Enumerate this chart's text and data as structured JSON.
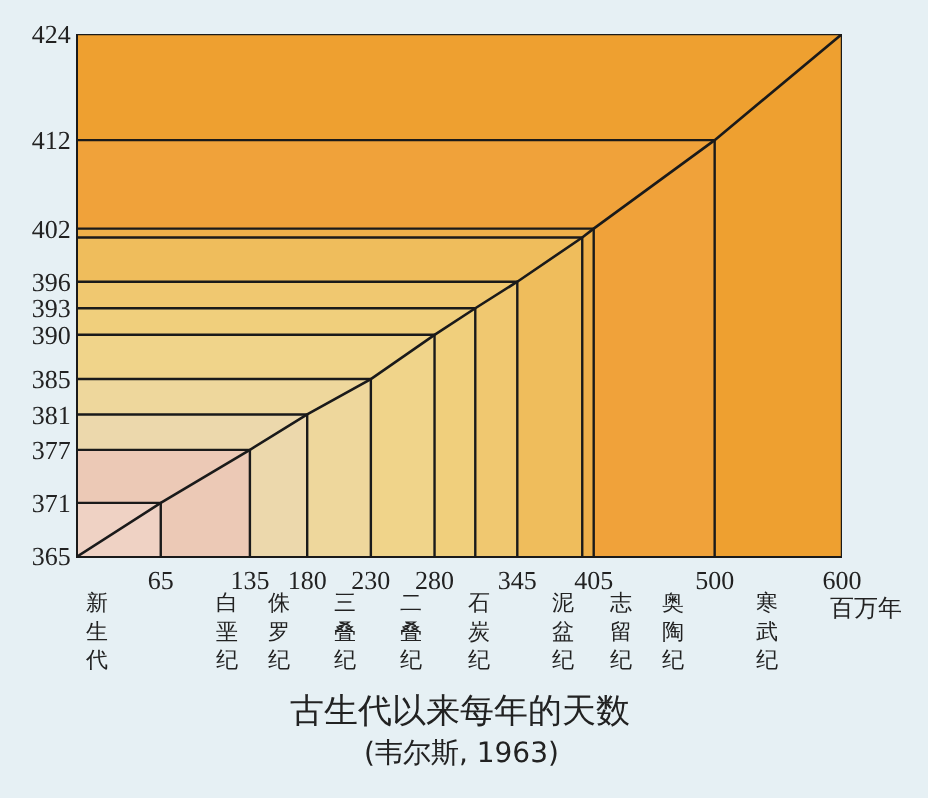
{
  "chart_data": {
    "type": "line",
    "title": "古生代以来每年的天数",
    "subtitle": "(韦尔斯, 1963)",
    "xlabel": "百万年",
    "series": [
      {
        "type": "area",
        "color": "#eea030",
        "x": [
          0,
          600,
          600
        ],
        "values": [
          424,
          424,
          365
        ]
      },
      {
        "type": "area",
        "color": "#f0a23a",
        "x": [
          0,
          500,
          500
        ],
        "values": [
          412,
          412,
          365
        ]
      },
      {
        "type": "area",
        "color": "#eeb04a",
        "x": [
          0,
          405,
          405
        ],
        "values": [
          402,
          402,
          365
        ]
      },
      {
        "type": "area",
        "color": "#efbd5c",
        "x": [
          0,
          396,
          396
        ],
        "values": [
          401,
          401,
          365
        ]
      },
      {
        "type": "area",
        "color": "#f0c870",
        "x": [
          0,
          345,
          345
        ],
        "values": [
          396,
          396,
          365
        ]
      },
      {
        "type": "area",
        "color": "#f0cf7c",
        "x": [
          0,
          312,
          312
        ],
        "values": [
          393,
          393,
          365
        ]
      },
      {
        "type": "area",
        "color": "#f0d48a",
        "x": [
          0,
          280,
          280
        ],
        "values": [
          390,
          390,
          365
        ]
      },
      {
        "type": "area",
        "color": "#eed79c",
        "x": [
          0,
          230,
          230
        ],
        "values": [
          385,
          385,
          365
        ]
      },
      {
        "type": "area",
        "color": "#ecd8ac",
        "x": [
          0,
          180,
          180
        ],
        "values": [
          381,
          381,
          365
        ]
      },
      {
        "type": "area",
        "color": "#ecc9b6",
        "x": [
          0,
          135,
          135
        ],
        "values": [
          377,
          377,
          365
        ]
      },
      {
        "type": "area",
        "color": "#efd2c4",
        "x": [
          0,
          65,
          65
        ],
        "values": [
          371,
          371,
          365
        ]
      },
      {
        "color": "#1a1a1a",
        "x": [
          0,
          65,
          135,
          180,
          230,
          280,
          312,
          345,
          396,
          405,
          500,
          600
        ],
        "values": [
          365,
          371,
          377,
          381,
          385,
          390,
          393,
          396,
          401,
          402,
          412,
          424
        ]
      }
    ],
    "xlim": [
      0,
      600
    ],
    "ylim": [
      365,
      424
    ],
    "xticks": [
      65,
      135,
      180,
      230,
      280,
      345,
      405,
      500,
      600
    ],
    "annotations": [
      "新生代",
      "白垩纪",
      "侏罗纪",
      "三叠纪",
      "二叠纪",
      "石炭纪",
      "泥盆纪",
      "志留纪",
      "奥陶纪",
      "寒武纪"
    ],
    "yticks": [
      365,
      371,
      377,
      381,
      385,
      390,
      393,
      396,
      402,
      412,
      424
    ],
    "marker": "none",
    "line_style": "solid"
  }
}
